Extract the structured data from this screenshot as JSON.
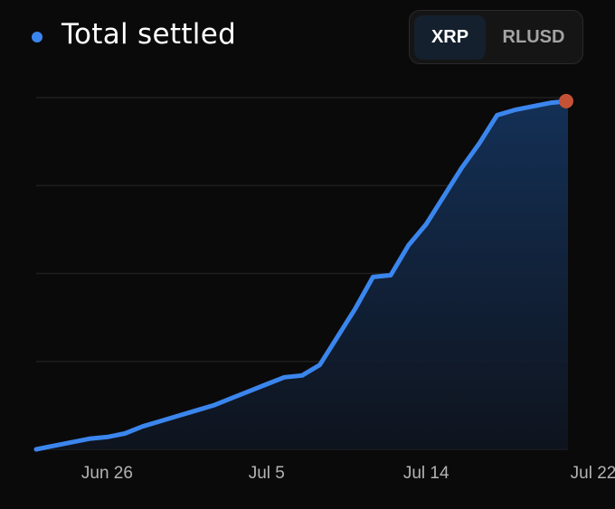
{
  "header": {
    "title": "Total settled",
    "legend_color": "#3b86ee"
  },
  "toggle": {
    "options": [
      "XRP",
      "RLUSD"
    ],
    "selected": "XRP"
  },
  "chart_data": {
    "type": "area",
    "title": "Total settled",
    "xlabel": "",
    "ylabel": "",
    "x_ticks": [
      "Jun 26",
      "Jul 5",
      "Jul 14",
      "Jul 22"
    ],
    "x": [
      "Jun 22",
      "Jun 23",
      "Jun 24",
      "Jun 25",
      "Jun 26",
      "Jun 27",
      "Jun 28",
      "Jun 29",
      "Jun 30",
      "Jul 1",
      "Jul 2",
      "Jul 3",
      "Jul 4",
      "Jul 5",
      "Jul 6",
      "Jul 7",
      "Jul 8",
      "Jul 9",
      "Jul 10",
      "Jul 11",
      "Jul 12",
      "Jul 13",
      "Jul 14",
      "Jul 15",
      "Jul 16",
      "Jul 17",
      "Jul 18",
      "Jul 19",
      "Jul 20",
      "Jul 21",
      "Jul 22"
    ],
    "values": [
      0,
      1,
      2,
      3,
      3.5,
      4.5,
      6.5,
      8,
      9.5,
      11,
      12.5,
      14.5,
      16.5,
      18.5,
      20.5,
      21,
      24,
      32,
      40,
      49,
      49.5,
      58,
      64,
      72,
      80,
      87,
      95,
      96.5,
      97.5,
      98.5,
      99
    ],
    "ylim": [
      0,
      100
    ],
    "grid": true,
    "series_color": "#3b86ee",
    "end_marker_color": "#c45236"
  }
}
